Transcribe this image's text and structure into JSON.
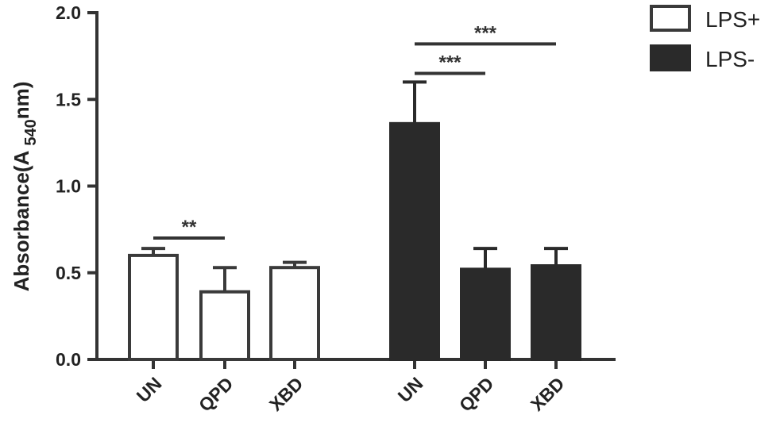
{
  "chart_data": {
    "type": "bar",
    "ylabel": {
      "main": "Absorbance(A",
      "subscript": "540",
      "suffix": "nm)"
    },
    "ylim": [
      0,
      2.0
    ],
    "yticks": [
      "0.0",
      "0.5",
      "1.0",
      "1.5",
      "2.0"
    ],
    "grid": false,
    "legend_position": "top-right",
    "series": [
      {
        "name": "LPS+",
        "color": "#ffffff",
        "edge": "#3a3a3a",
        "categories": [
          "UN",
          "QPD",
          "XBD"
        ],
        "values": [
          0.6,
          0.39,
          0.53
        ],
        "errors": [
          0.04,
          0.14,
          0.03
        ]
      },
      {
        "name": "LPS-",
        "color": "#2a2a2a",
        "edge": "#2a2a2a",
        "categories": [
          "UN",
          "QPD",
          "XBD"
        ],
        "values": [
          1.36,
          0.52,
          0.54
        ],
        "errors": [
          0.24,
          0.12,
          0.1
        ]
      }
    ],
    "significance": [
      {
        "label": "**",
        "series": 0,
        "from": 0,
        "to": 1,
        "y": 0.7
      },
      {
        "label": "***",
        "series": 1,
        "from": 0,
        "to": 1,
        "y": 1.65
      },
      {
        "label": "***",
        "series": 1,
        "from": 0,
        "to": 2,
        "y": 1.82
      }
    ]
  }
}
